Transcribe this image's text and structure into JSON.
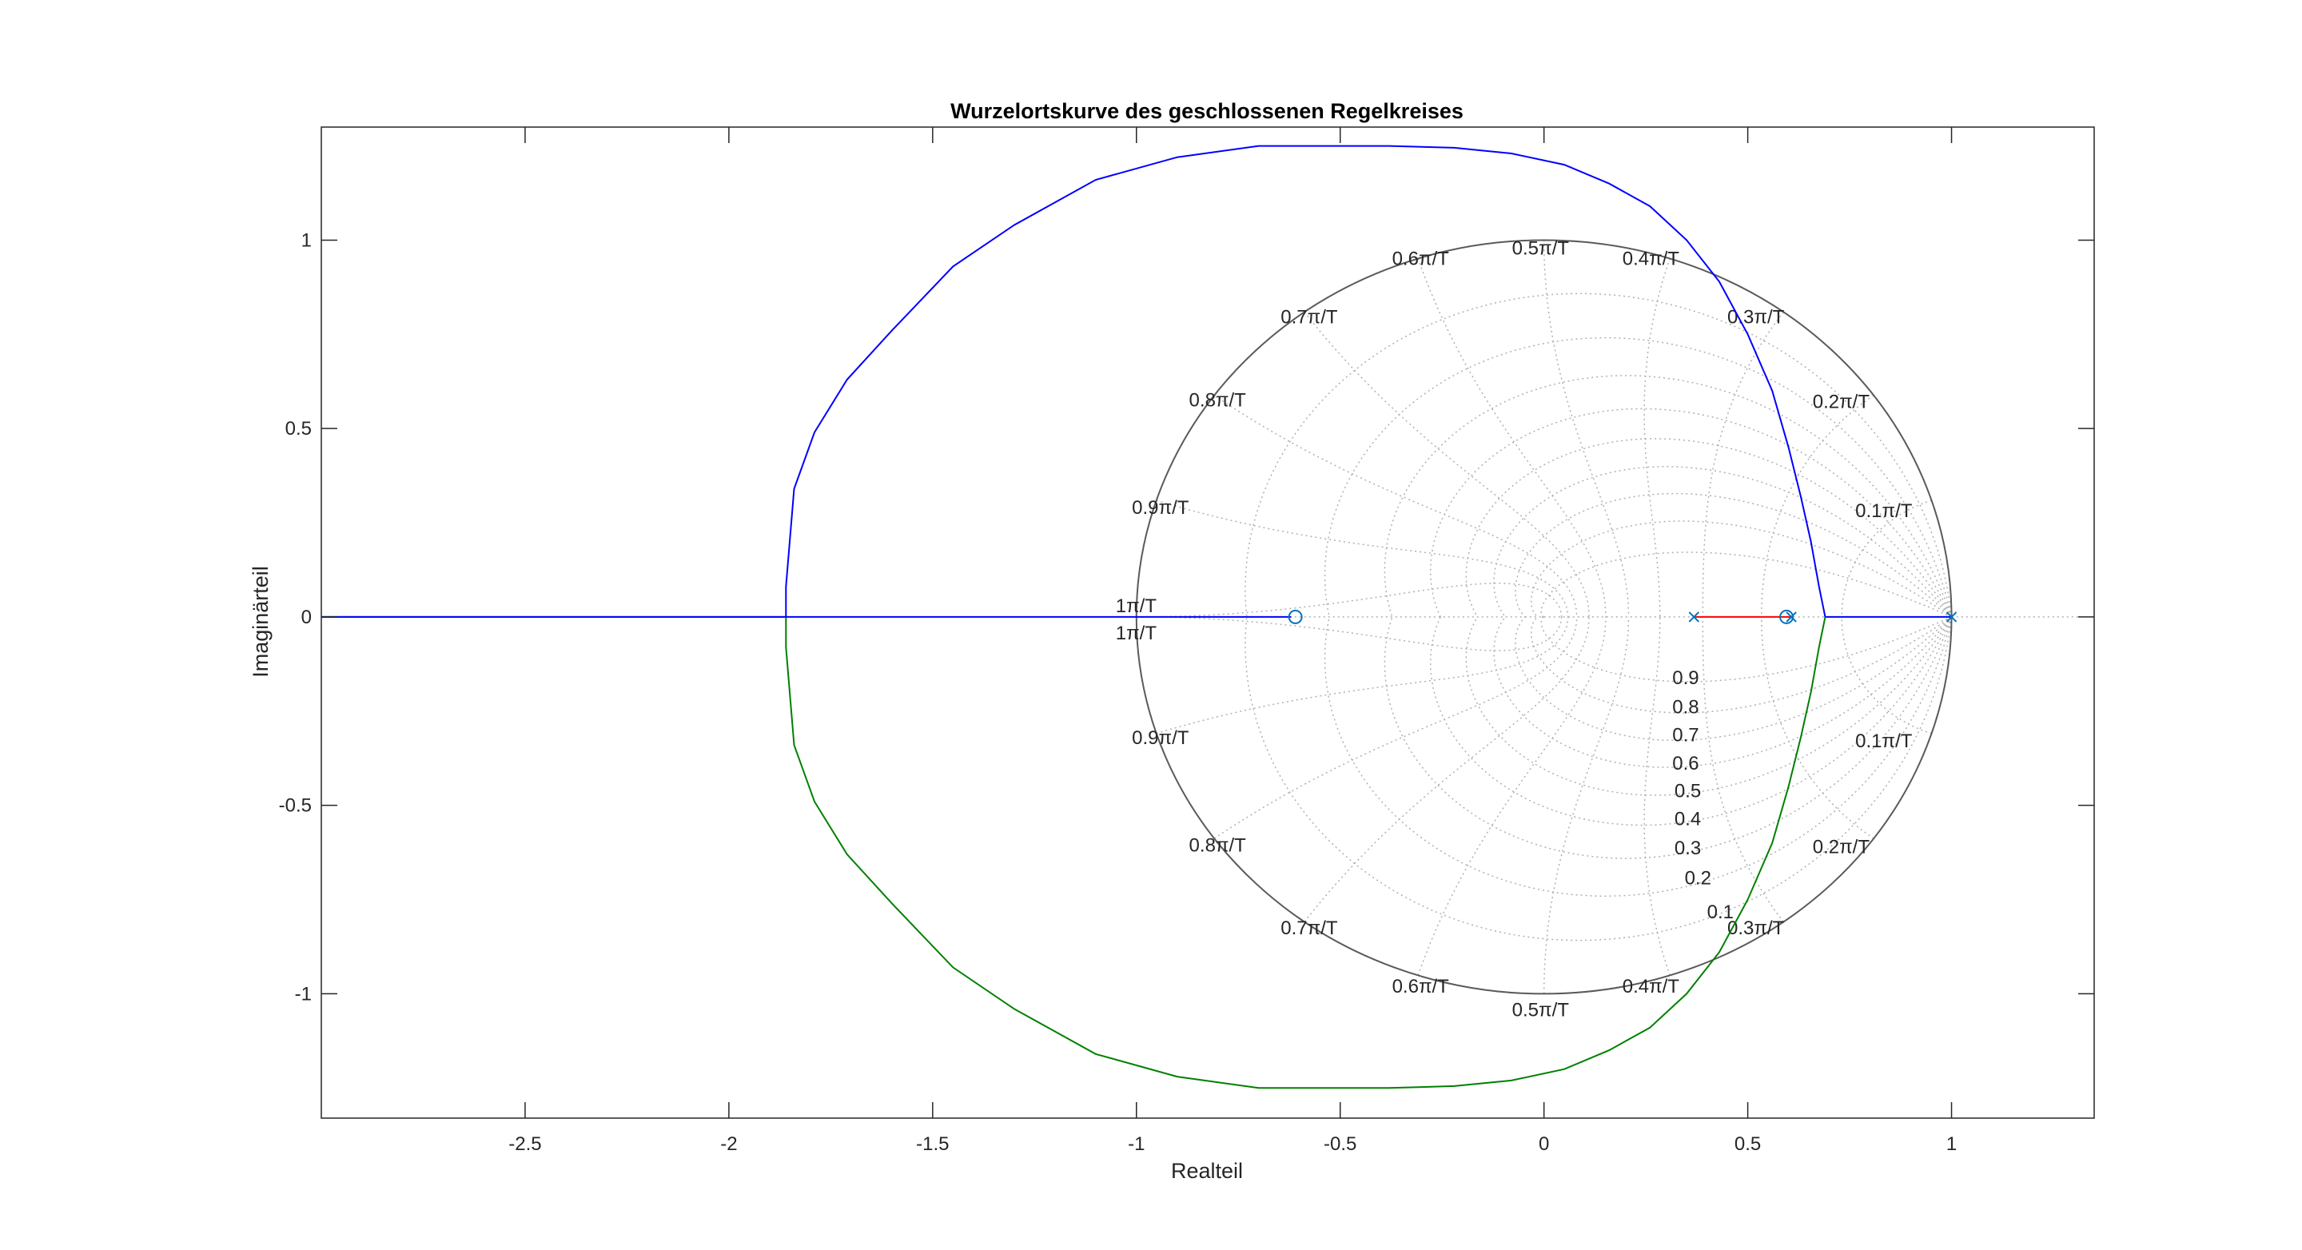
{
  "chart_data": {
    "type": "line",
    "title": "Wurzelortskurve des geschlossenen Regelkreises",
    "xlabel": "Realteil",
    "ylabel": "Imaginärteil",
    "xlim": [
      -3.0,
      1.35
    ],
    "ylim": [
      -1.33,
      1.3
    ],
    "xticks": [
      -2.5,
      -2,
      -1.5,
      -1,
      -0.5,
      0,
      0.5,
      1
    ],
    "yticks": [
      -1,
      -0.5,
      0,
      0.5,
      1
    ],
    "xtick_labels": [
      "-2.5",
      "-2",
      "-1.5",
      "-1",
      "-0.5",
      "0",
      "0.5",
      "1"
    ],
    "ytick_labels": [
      "-1",
      "-0.5",
      "0",
      "0.5",
      "1"
    ],
    "grid": "zgrid",
    "zgrid_damping_labels": [
      "0.1",
      "0.2",
      "0.3",
      "0.4",
      "0.5",
      "0.6",
      "0.7",
      "0.8",
      "0.9"
    ],
    "zgrid_frequency_labels": [
      "0.1π/T",
      "0.2π/T",
      "0.3π/T",
      "0.4π/T",
      "0.5π/T",
      "0.6π/T",
      "0.7π/T",
      "0.8π/T",
      "0.9π/T",
      "1π/T"
    ],
    "series": [
      {
        "color": "#0000ff",
        "x": [
          1.0,
          0.69,
          0.675,
          0.655,
          0.63,
          0.6,
          0.56,
          0.5,
          0.43,
          0.35,
          0.26,
          0.16,
          0.05,
          -0.08,
          -0.22,
          -0.38,
          -0.55,
          -0.7,
          -0.9,
          -1.1,
          -1.3,
          -1.45,
          -1.6,
          -1.71,
          -1.79,
          -1.84,
          -1.86,
          -1.86
        ],
        "y": [
          0.0,
          0.0,
          0.08,
          0.2,
          0.32,
          0.45,
          0.6,
          0.75,
          0.89,
          1.0,
          1.09,
          1.15,
          1.2,
          1.23,
          1.245,
          1.25,
          1.25,
          1.25,
          1.22,
          1.16,
          1.04,
          0.93,
          0.76,
          0.63,
          0.49,
          0.34,
          0.08,
          0.0
        ]
      },
      {
        "color": "#008000",
        "x": [
          0.69,
          0.675,
          0.655,
          0.63,
          0.6,
          0.56,
          0.5,
          0.43,
          0.35,
          0.26,
          0.16,
          0.05,
          -0.08,
          -0.22,
          -0.38,
          -0.55,
          -0.7,
          -0.9,
          -1.1,
          -1.3,
          -1.45,
          -1.6,
          -1.71,
          -1.79,
          -1.84,
          -1.86,
          -1.86,
          -3.0
        ],
        "y": [
          0.0,
          -0.08,
          -0.2,
          -0.32,
          -0.45,
          -0.6,
          -0.75,
          -0.89,
          -1.0,
          -1.09,
          -1.15,
          -1.2,
          -1.23,
          -1.245,
          -1.25,
          -1.25,
          -1.25,
          -1.22,
          -1.16,
          -1.04,
          -0.93,
          -0.76,
          -0.63,
          -0.49,
          -0.34,
          -0.08,
          0.0,
          0.0
        ]
      },
      {
        "color": "#ff0000",
        "x": [
          0.368,
          0.605
        ],
        "y": [
          0.0,
          0.0
        ]
      },
      {
        "color": "#0000ff",
        "x": [
          -0.62,
          -3.0
        ],
        "y": [
          0.0,
          0.0
        ]
      }
    ],
    "poles": [
      {
        "x": 1.0,
        "y": 0.0
      },
      {
        "x": 0.368,
        "y": 0.0
      },
      {
        "x": 0.607,
        "y": 0.0
      }
    ],
    "zeros": [
      {
        "x": -0.61,
        "y": 0.0
      },
      {
        "x": 0.595,
        "y": 0.0
      }
    ]
  }
}
